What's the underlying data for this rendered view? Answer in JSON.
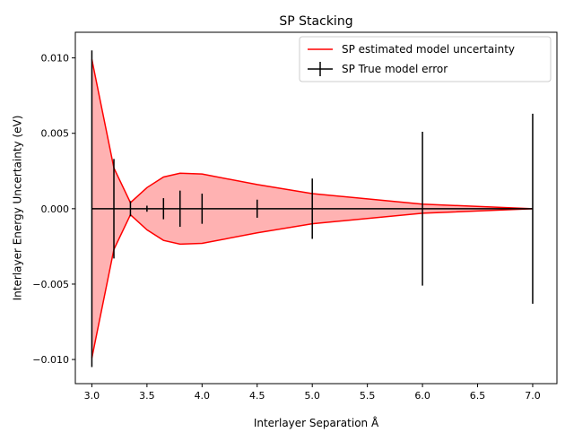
{
  "chart_data": {
    "type": "line",
    "title": "SP Stacking",
    "xlabel": "Interlayer Separation Å",
    "ylabel": "Interlayer Energy Uncertainty (eV)",
    "xlim": [
      2.85,
      7.22
    ],
    "ylim": [
      -0.0116,
      0.0117
    ],
    "x_ticks": [
      3.0,
      3.5,
      4.0,
      4.5,
      5.0,
      5.5,
      6.0,
      6.5,
      7.0
    ],
    "x_tick_labels": [
      "3.0",
      "3.5",
      "4.0",
      "4.5",
      "5.0",
      "5.5",
      "6.0",
      "6.5",
      "7.0"
    ],
    "y_ticks": [
      -0.01,
      -0.005,
      0.0,
      0.005,
      0.01
    ],
    "y_tick_labels": [
      "−0.010",
      "−0.005",
      "0.000",
      "0.005",
      "0.010"
    ],
    "grid": false,
    "legend_position": "top-right",
    "series": [
      {
        "name": "SP estimated model uncertainty",
        "kind": "band",
        "color": "#ff0000",
        "fill_color": "#ff0000",
        "x": [
          3.0,
          3.2,
          3.35,
          3.5,
          3.65,
          3.8,
          4.0,
          4.5,
          5.0,
          6.0,
          7.0
        ],
        "upper": [
          0.0099,
          0.0027,
          0.0004,
          0.0014,
          0.0021,
          0.00235,
          0.0023,
          0.0016,
          0.001,
          0.0003,
          0.0
        ],
        "lower": [
          -0.0099,
          -0.0027,
          -0.0004,
          -0.0014,
          -0.0021,
          -0.00235,
          -0.0023,
          -0.0016,
          -0.001,
          -0.0003,
          0.0
        ]
      },
      {
        "name": "SP True model error",
        "kind": "errorbar",
        "color": "#000000",
        "x": [
          3.0,
          3.2,
          3.35,
          3.5,
          3.65,
          3.8,
          4.0,
          4.5,
          5.0,
          6.0,
          7.0
        ],
        "y": [
          0,
          0,
          0,
          0,
          0,
          0,
          0,
          0,
          0,
          0,
          0
        ],
        "err": [
          0.0105,
          0.0033,
          0.0005,
          0.0002,
          0.0007,
          0.0012,
          0.001,
          0.0006,
          0.002,
          0.0051,
          0.0063
        ]
      }
    ]
  }
}
